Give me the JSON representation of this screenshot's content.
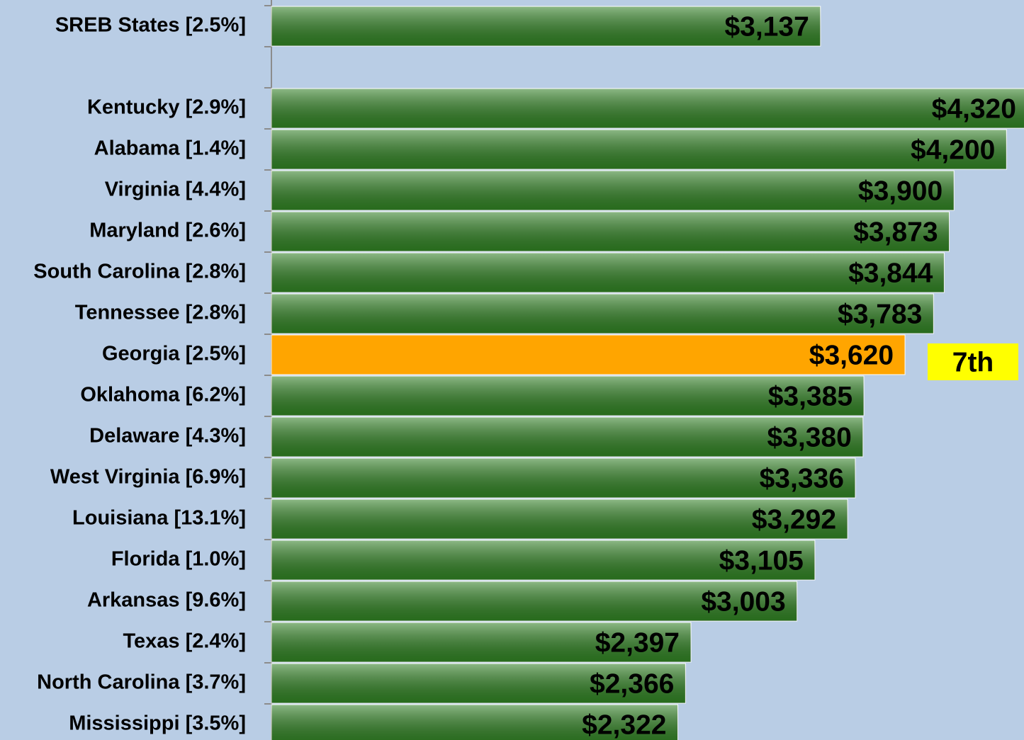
{
  "chart_data": {
    "type": "hbar",
    "categories": [
      "SREB States [2.5%]",
      null,
      "Kentucky [2.9%]",
      "Alabama [1.4%]",
      "Virginia [4.4%]",
      "Maryland [2.6%]",
      "South Carolina [2.8%]",
      "Tennessee [2.8%]",
      "Georgia [2.5%]",
      "Oklahoma [6.2%]",
      "Delaware [4.3%]",
      "West Virginia [6.9%]",
      "Louisiana [13.1%]",
      "Florida [1.0%]",
      "Arkansas [9.6%]",
      "Texas [2.4%]",
      "North Carolina [3.7%]",
      "Mississippi [3.5%]"
    ],
    "values": [
      3137,
      null,
      4320,
      4200,
      3900,
      3873,
      3844,
      3783,
      3620,
      3385,
      3380,
      3336,
      3292,
      3105,
      3003,
      2397,
      2366,
      2322
    ],
    "value_labels": [
      "$3,137",
      null,
      "$4,320",
      "$4,200",
      "$3,900",
      "$3,873",
      "$3,844",
      "$3,783",
      "$3,620",
      "$3,385",
      "$3,380",
      "$3,336",
      "$3,292",
      "$3,105",
      "$3,003",
      "$2,397",
      "$2,366",
      "$2,322"
    ],
    "colors": [
      "#2f7f22",
      null,
      "#2f7f22",
      "#2f7f22",
      "#2f7f22",
      "#2f7f22",
      "#2f7f22",
      "#2f7f22",
      "#ffa500",
      "#2f7f22",
      "#2f7f22",
      "#2f7f22",
      "#2f7f22",
      "#2f7f22",
      "#2f7f22",
      "#2f7f22",
      "#2f7f22",
      "#2f7f22"
    ],
    "xlim": [
      0,
      4300
    ],
    "annotation": {
      "text": "7th",
      "color": "#ffff00"
    }
  }
}
